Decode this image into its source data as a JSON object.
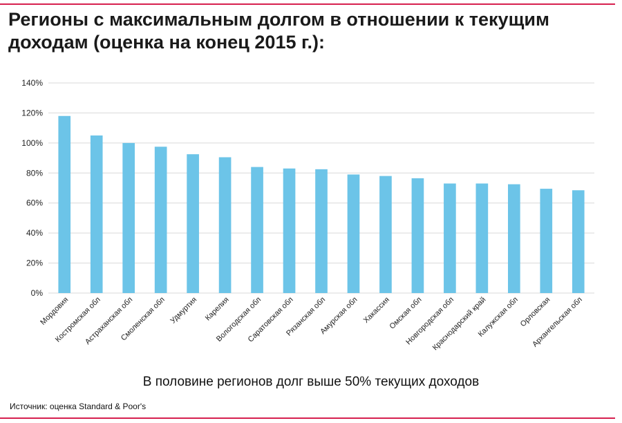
{
  "header": {
    "title": "Регионы с максимальным долгом в отношении к текущим доходам (оценка на конец 2015 г.):"
  },
  "footer": {
    "note": "В половине регионов долг выше 50% текущих доходов",
    "source": "Источник: оценка Standard & Poor's"
  },
  "colors": {
    "bar": "#6cc4e8",
    "grid": "#d9d9d9",
    "accent": "#d61f4e"
  },
  "chart_data": {
    "type": "bar",
    "title": "",
    "xlabel": "",
    "ylabel": "",
    "ylim": [
      0,
      140
    ],
    "y_ticks": [
      "0%",
      "20%",
      "40%",
      "60%",
      "80%",
      "100%",
      "120%",
      "140%"
    ],
    "grid": true,
    "legend": "none",
    "categories": [
      "Мордовия",
      "Костромская обл",
      "Астраханская обл",
      "Смоленская обл",
      "Удмуртия",
      "Карелия",
      "Вологодская обл",
      "Саратовская обл",
      "Рязанская обл",
      "Амурская обл",
      "Хакассия",
      "Омская обл",
      "Новгородская обл",
      "Краснодарский край",
      "Калужская обл",
      "Орловская",
      "Архангельская обл"
    ],
    "values": [
      118,
      105,
      100,
      97.5,
      92.5,
      90.5,
      84,
      83,
      82.5,
      79,
      78,
      76.5,
      73,
      73,
      72.5,
      69.5,
      68.5
    ]
  }
}
